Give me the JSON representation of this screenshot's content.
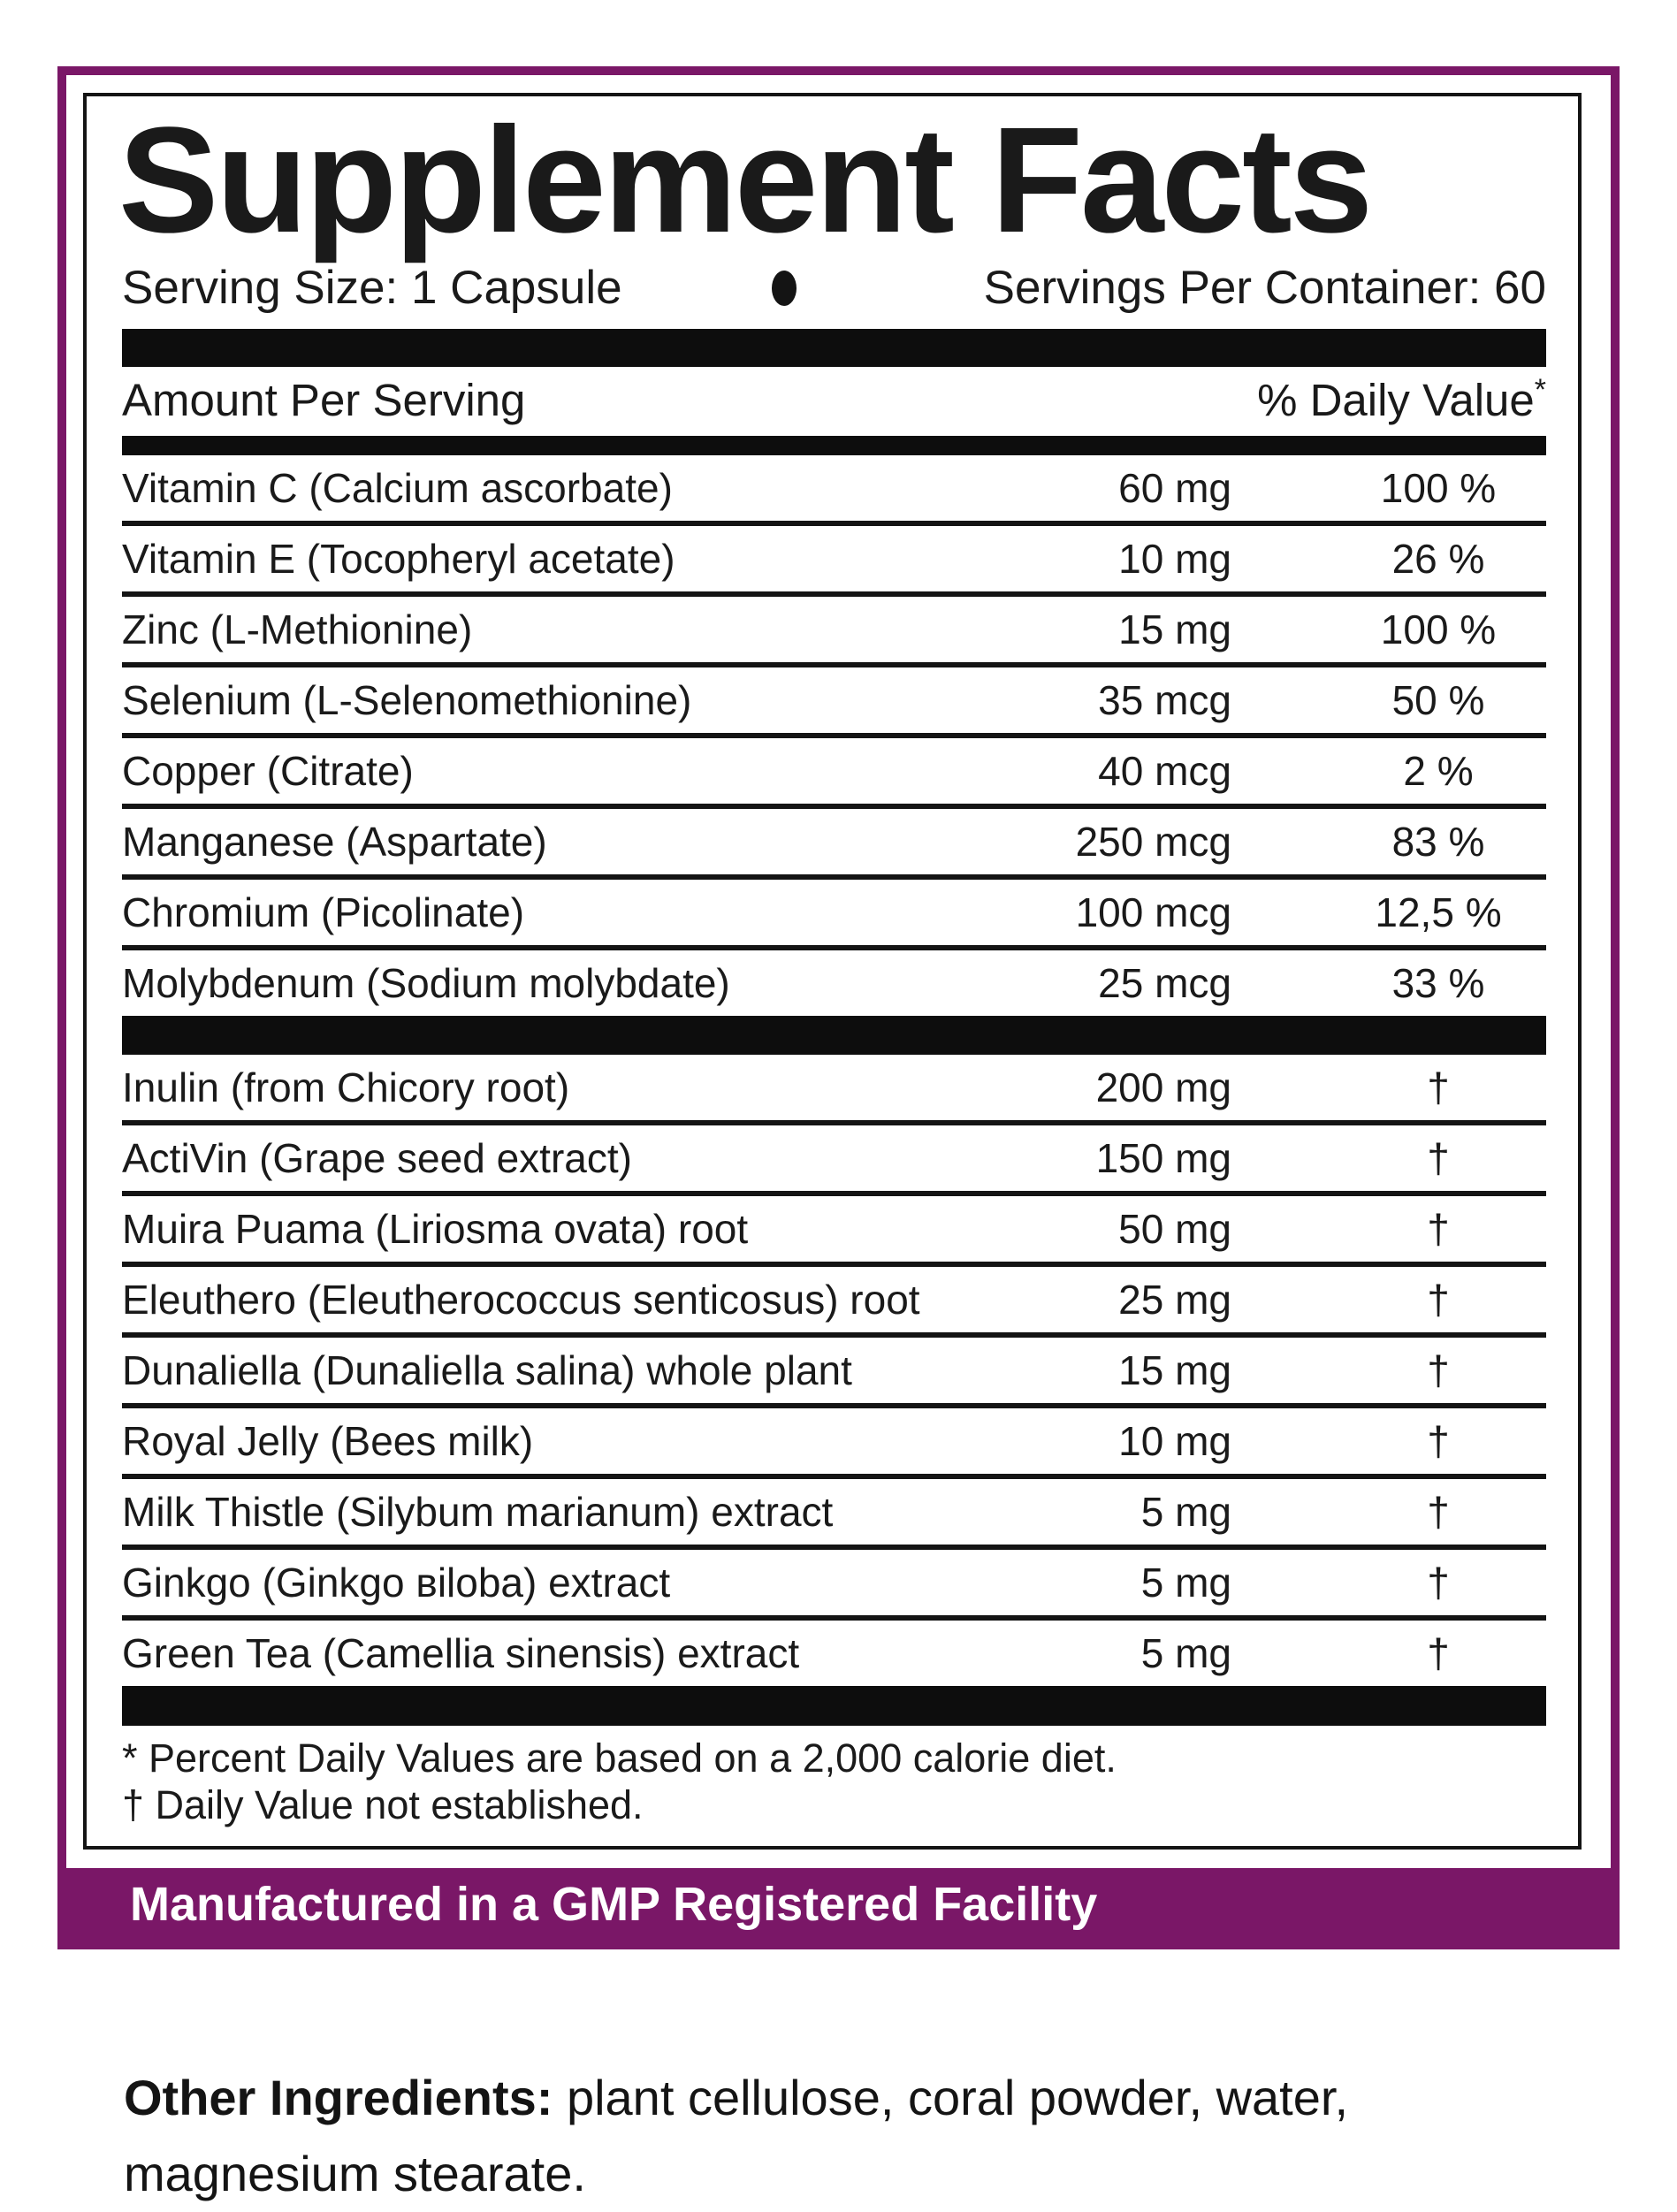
{
  "colors": {
    "purple": "#7A1767",
    "black": "#141414"
  },
  "title": "Supplement Facts",
  "serving": {
    "size": "Serving Size: 1 Capsule",
    "per_container": "Servings Per Container: 60"
  },
  "table": {
    "header_left": "Amount Per Serving",
    "header_right": "% Daily Value",
    "header_right_sup": "*",
    "nutrients": [
      {
        "name": "Vitamin C (Calcium ascorbate)",
        "amount": "60 mg",
        "dv": "100 %"
      },
      {
        "name": "Vitamin E (Tocopheryl acetate)",
        "amount": "10 mg",
        "dv": "26 %"
      },
      {
        "name": "Zinc (L-Methionine)",
        "amount": "15 mg",
        "dv": "100 %"
      },
      {
        "name": "Selenium (L-Selenomethionine)",
        "amount": "35 mcg",
        "dv": "50 %"
      },
      {
        "name": "Copper (Citrate)",
        "amount": "40 mcg",
        "dv": "2 %"
      },
      {
        "name": "Manganese (Aspartate)",
        "amount": "250 mcg",
        "dv": "83 %"
      },
      {
        "name": "Chromium (Picolinate)",
        "amount": "100 mcg",
        "dv": "12,5 %"
      },
      {
        "name": "Molybdenum (Sodium molybdate)",
        "amount": "25 mcg",
        "dv": "33 %"
      }
    ],
    "botanicals": [
      {
        "name": "Inulin (from Chicory root)",
        "amount": "200 mg",
        "dv": "†"
      },
      {
        "name": "ActiVin (Grape seed extract)",
        "amount": "150 mg",
        "dv": "†"
      },
      {
        "name": "Muira Puama (Liriosma ovata) root",
        "amount": "50 mg",
        "dv": "†"
      },
      {
        "name": "Eleuthero (Eleutherococcus senticosus) root",
        "amount": "25 mg",
        "dv": "†"
      },
      {
        "name": "Dunaliella (Dunaliella salina) whole plant",
        "amount": "15 mg",
        "dv": "†"
      },
      {
        "name": "Royal Jelly (Bees milk)",
        "amount": "10 mg",
        "dv": "†"
      },
      {
        "name": "Milk Thistle (Silybum marianum) extract",
        "amount": "5 mg",
        "dv": "†"
      },
      {
        "name": "Ginkgo (Ginkgo вiloba) extract",
        "amount": "5 mg",
        "dv": "†"
      },
      {
        "name": "Green Tea (Camellia sinensis) extract",
        "amount": "5 mg",
        "dv": "†"
      }
    ],
    "footnotes": [
      "* Percent Daily Values are based on a 2,000 calorie diet.",
      "† Daily Value not established."
    ]
  },
  "banner": {
    "text": "Manufactured in a GMP Registered Facility"
  },
  "other_ingredients": {
    "label": "Other Ingredients:",
    "line1": " plant cellulose, coral powder, water,",
    "line2": "magnesium stearate."
  }
}
